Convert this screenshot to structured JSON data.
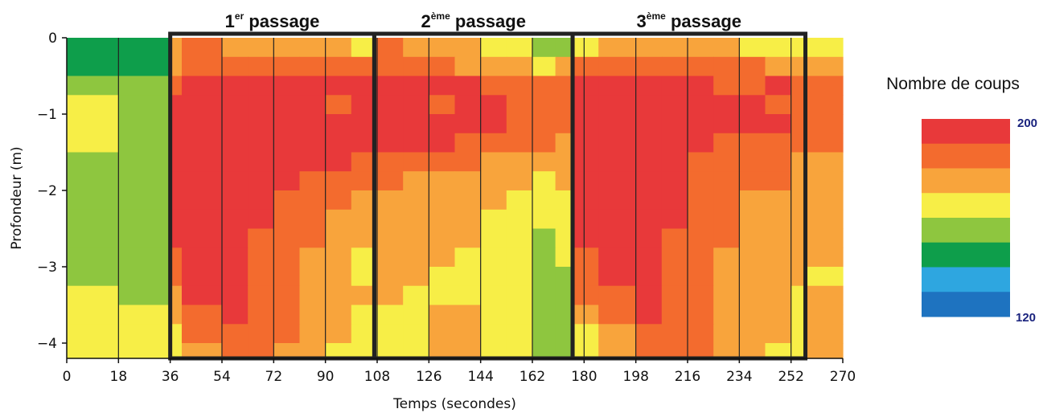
{
  "chart_data": {
    "type": "heatmap",
    "xlabel": "Temps (secondes)",
    "ylabel": "Profondeur (m)",
    "xlim": [
      0,
      270
    ],
    "ylim": [
      -4.2,
      0
    ],
    "x_ticks": [
      0,
      18,
      36,
      54,
      72,
      90,
      108,
      126,
      144,
      162,
      180,
      198,
      216,
      234,
      252,
      270
    ],
    "y_ticks": [
      0,
      -1,
      -2,
      -3,
      -4
    ],
    "passages": [
      {
        "num": "1",
        "sup": "er",
        "label": "passage",
        "start": 36,
        "end": 107
      },
      {
        "num": "2",
        "sup": "ème",
        "label": "passage",
        "start": 107,
        "end": 176
      },
      {
        "num": "3",
        "sup": "ème",
        "label": "passage",
        "start": 176,
        "end": 257
      }
    ],
    "colorbar": {
      "title": "Nombre de coups",
      "min": 120,
      "max": 200,
      "max_label": "200",
      "min_label": "120",
      "colors": [
        "#e8393a",
        "#f36b2e",
        "#f8a43c",
        "#f7ee47",
        "#8ec63f",
        "#0e9e4b",
        "#2ea6e0",
        "#1e73c0"
      ]
    },
    "value_grid_note": "values in counts (120-200); rows from depth 0 to -4.2 m",
    "x_edges": [
      0,
      18,
      36,
      40,
      54,
      63,
      72,
      81,
      90,
      99,
      107,
      117,
      126,
      135,
      144,
      153,
      162,
      170,
      176,
      185,
      198,
      207,
      216,
      225,
      234,
      243,
      252,
      257,
      270
    ],
    "y_edges": [
      0,
      -0.25,
      -0.5,
      -0.75,
      -1.0,
      -1.25,
      -1.5,
      -1.75,
      -2.0,
      -2.25,
      -2.5,
      -2.75,
      -3.0,
      -3.25,
      -3.5,
      -3.75,
      -4.0,
      -4.2
    ],
    "values": [
      [
        150,
        150,
        175,
        185,
        180,
        175,
        180,
        175,
        180,
        170,
        185,
        180,
        175,
        175,
        170,
        165,
        160,
        160,
        170,
        180,
        175,
        180,
        175,
        175,
        170,
        165,
        170,
        165
      ],
      [
        150,
        150,
        175,
        185,
        185,
        185,
        185,
        185,
        185,
        185,
        185,
        185,
        185,
        180,
        180,
        175,
        170,
        175,
        185,
        185,
        185,
        185,
        185,
        185,
        185,
        180,
        180,
        180
      ],
      [
        160,
        160,
        190,
        195,
        195,
        195,
        195,
        195,
        195,
        195,
        195,
        195,
        195,
        195,
        190,
        190,
        185,
        190,
        195,
        195,
        195,
        195,
        195,
        190,
        190,
        195,
        185,
        185
      ],
      [
        165,
        160,
        195,
        195,
        195,
        195,
        195,
        195,
        190,
        195,
        195,
        195,
        190,
        195,
        195,
        190,
        190,
        185,
        195,
        195,
        195,
        195,
        195,
        195,
        195,
        190,
        190,
        185
      ],
      [
        165,
        160,
        195,
        195,
        195,
        195,
        195,
        195,
        195,
        195,
        195,
        195,
        195,
        195,
        195,
        190,
        185,
        185,
        195,
        195,
        195,
        195,
        195,
        195,
        195,
        195,
        190,
        190
      ],
      [
        170,
        160,
        195,
        195,
        195,
        195,
        195,
        195,
        195,
        195,
        195,
        195,
        195,
        190,
        190,
        185,
        185,
        180,
        195,
        195,
        195,
        195,
        195,
        190,
        190,
        190,
        190,
        190
      ],
      [
        160,
        160,
        195,
        195,
        195,
        195,
        195,
        195,
        195,
        190,
        190,
        185,
        185,
        185,
        180,
        180,
        175,
        175,
        195,
        195,
        195,
        195,
        190,
        190,
        185,
        185,
        180,
        180
      ],
      [
        160,
        160,
        195,
        195,
        195,
        195,
        195,
        190,
        190,
        185,
        185,
        180,
        180,
        180,
        180,
        175,
        170,
        175,
        195,
        195,
        195,
        195,
        190,
        190,
        185,
        185,
        180,
        180
      ],
      [
        160,
        160,
        195,
        195,
        195,
        195,
        190,
        190,
        185,
        180,
        180,
        180,
        175,
        175,
        175,
        170,
        170,
        170,
        195,
        195,
        195,
        195,
        190,
        185,
        180,
        180,
        175,
        175
      ],
      [
        160,
        160,
        195,
        195,
        195,
        195,
        190,
        185,
        180,
        180,
        175,
        175,
        175,
        175,
        170,
        170,
        165,
        170,
        195,
        195,
        195,
        195,
        190,
        185,
        180,
        180,
        175,
        175
      ],
      [
        160,
        160,
        195,
        195,
        195,
        190,
        190,
        185,
        175,
        175,
        175,
        175,
        175,
        175,
        170,
        170,
        160,
        165,
        195,
        195,
        195,
        190,
        190,
        185,
        180,
        175,
        175,
        175
      ],
      [
        160,
        160,
        190,
        195,
        195,
        190,
        185,
        180,
        175,
        165,
        175,
        175,
        175,
        170,
        170,
        165,
        160,
        165,
        190,
        195,
        195,
        190,
        185,
        180,
        180,
        175,
        175,
        175
      ],
      [
        160,
        160,
        185,
        195,
        195,
        190,
        185,
        180,
        175,
        165,
        175,
        175,
        170,
        170,
        170,
        165,
        160,
        160,
        185,
        195,
        195,
        190,
        185,
        180,
        175,
        175,
        175,
        170
      ],
      [
        165,
        160,
        180,
        195,
        195,
        190,
        185,
        180,
        175,
        175,
        175,
        170,
        170,
        170,
        170,
        165,
        160,
        160,
        185,
        190,
        195,
        190,
        185,
        180,
        175,
        175,
        170,
        175
      ],
      [
        165,
        165,
        175,
        190,
        195,
        190,
        185,
        180,
        175,
        170,
        170,
        170,
        175,
        175,
        170,
        165,
        160,
        160,
        175,
        185,
        195,
        190,
        185,
        180,
        175,
        175,
        170,
        175
      ],
      [
        165,
        165,
        170,
        185,
        190,
        185,
        185,
        180,
        175,
        170,
        170,
        170,
        180,
        175,
        170,
        165,
        160,
        160,
        170,
        180,
        190,
        190,
        185,
        180,
        175,
        175,
        170,
        175
      ],
      [
        165,
        165,
        165,
        180,
        190,
        185,
        180,
        175,
        170,
        170,
        170,
        170,
        175,
        175,
        170,
        165,
        160,
        160,
        165,
        175,
        190,
        190,
        185,
        180,
        175,
        170,
        170,
        175
      ]
    ]
  }
}
